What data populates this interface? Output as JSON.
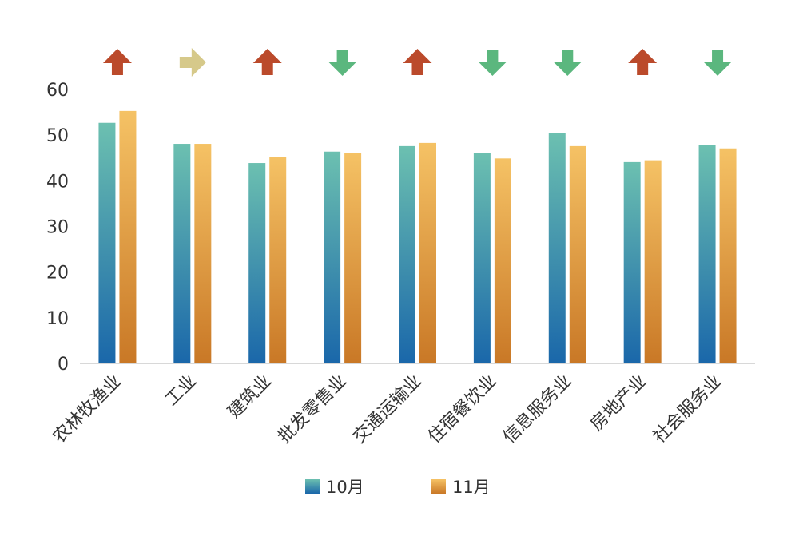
{
  "chart_data": {
    "type": "bar",
    "categories": [
      "农林牧渔业",
      "工业",
      "建筑业",
      "批发零售业",
      "交通运输业",
      "住宿餐饮业",
      "信息服务业",
      "房地产业",
      "社会服务业"
    ],
    "series": [
      {
        "name": "10月",
        "values": [
          52.7,
          48.1,
          43.9,
          46.4,
          47.6,
          46.1,
          50.4,
          44.1,
          47.8
        ],
        "color_top": "#6cc0b0",
        "color_bottom": "#1a67aa"
      },
      {
        "name": "11月",
        "values": [
          55.3,
          48.1,
          45.2,
          46.1,
          48.3,
          44.9,
          47.6,
          44.5,
          47.1
        ],
        "color_top": "#f5c265",
        "color_bottom": "#c97826"
      }
    ],
    "trend": [
      "up",
      "flat",
      "up",
      "down",
      "up",
      "down",
      "down",
      "up",
      "down"
    ],
    "trend_colors": {
      "up": "#bb4a2b",
      "flat": "#d6c98a",
      "down": "#5bb77e"
    },
    "ylim": [
      0,
      60
    ],
    "yticks": [
      0,
      10,
      20,
      30,
      40,
      50,
      60
    ],
    "grid": false,
    "legend_position": "bottom",
    "title": "",
    "xlabel": "",
    "ylabel": ""
  }
}
